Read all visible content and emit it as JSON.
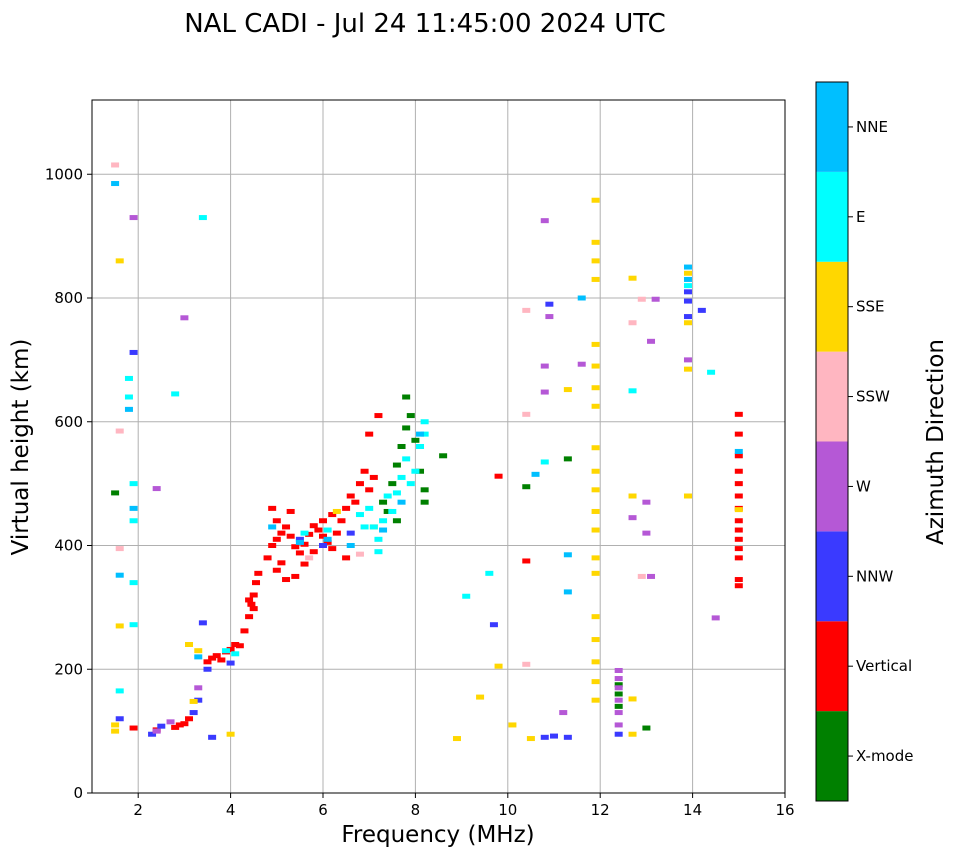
{
  "chart_data": {
    "type": "scatter",
    "title": "NAL CADI - Jul 24 11:45:00 2024 UTC",
    "xlabel": "Frequency (MHz)",
    "ylabel": "Virtual height (km)",
    "xlim": [
      1.0,
      16.0
    ],
    "ylim": [
      0,
      1120
    ],
    "xticks": [
      2,
      4,
      6,
      8,
      10,
      12,
      14,
      16
    ],
    "yticks": [
      0,
      200,
      400,
      600,
      800,
      1000
    ],
    "grid": true,
    "colorbar": {
      "label": "Azimuth Direction",
      "categories": [
        {
          "name": "X-mode",
          "color": "#008000"
        },
        {
          "name": "Vertical",
          "color": "#ff0000"
        },
        {
          "name": "NNW",
          "color": "#3a3aff"
        },
        {
          "name": "W",
          "color": "#b558d6"
        },
        {
          "name": "SSW",
          "color": "#ffb6c1"
        },
        {
          "name": "SSE",
          "color": "#ffd700"
        },
        {
          "name": "E",
          "color": "#00ffff"
        },
        {
          "name": "NNE",
          "color": "#00bfff"
        }
      ]
    },
    "series": [
      {
        "name": "Vertical",
        "color": "#ff0000",
        "points": [
          [
            1.9,
            105
          ],
          [
            2.4,
            102
          ],
          [
            2.8,
            106
          ],
          [
            2.9,
            110
          ],
          [
            3.0,
            112
          ],
          [
            3.1,
            120
          ],
          [
            3.5,
            212
          ],
          [
            3.6,
            218
          ],
          [
            3.7,
            222
          ],
          [
            3.8,
            215
          ],
          [
            3.9,
            228
          ],
          [
            4.0,
            232
          ],
          [
            4.1,
            240
          ],
          [
            4.2,
            238
          ],
          [
            4.3,
            262
          ],
          [
            4.4,
            285
          ],
          [
            4.45,
            305
          ],
          [
            4.5,
            320
          ],
          [
            4.55,
            340
          ],
          [
            4.6,
            355
          ],
          [
            4.5,
            298
          ],
          [
            4.4,
            312
          ],
          [
            4.8,
            380
          ],
          [
            4.9,
            400
          ],
          [
            5.0,
            410
          ],
          [
            5.1,
            420
          ],
          [
            5.2,
            430
          ],
          [
            5.3,
            415
          ],
          [
            5.4,
            398
          ],
          [
            5.5,
            388
          ],
          [
            5.6,
            402
          ],
          [
            5.7,
            418
          ],
          [
            5.8,
            432
          ],
          [
            5.9,
            425
          ],
          [
            6.0,
            415
          ],
          [
            6.1,
            405
          ],
          [
            6.2,
            395
          ],
          [
            6.3,
            420
          ],
          [
            6.4,
            440
          ],
          [
            6.5,
            460
          ],
          [
            6.6,
            480
          ],
          [
            6.7,
            470
          ],
          [
            6.8,
            500
          ],
          [
            6.9,
            520
          ],
          [
            7.0,
            490
          ],
          [
            7.1,
            510
          ],
          [
            5.0,
            360
          ],
          [
            5.2,
            345
          ],
          [
            5.4,
            350
          ],
          [
            5.0,
            440
          ],
          [
            5.3,
            455
          ],
          [
            4.9,
            460
          ],
          [
            6.2,
            450
          ],
          [
            6.0,
            440
          ],
          [
            7.0,
            580
          ],
          [
            7.2,
            610
          ],
          [
            6.5,
            380
          ],
          [
            5.8,
            390
          ],
          [
            5.6,
            370
          ],
          [
            5.1,
            372
          ],
          [
            15.0,
            335
          ],
          [
            15.0,
            345
          ],
          [
            15.0,
            380
          ],
          [
            15.0,
            395
          ],
          [
            15.0,
            410
          ],
          [
            15.0,
            425
          ],
          [
            15.0,
            440
          ],
          [
            15.0,
            460
          ],
          [
            15.0,
            480
          ],
          [
            15.0,
            500
          ],
          [
            15.0,
            520
          ],
          [
            15.0,
            545
          ],
          [
            15.0,
            580
          ],
          [
            15.0,
            612
          ],
          [
            10.4,
            375
          ],
          [
            9.8,
            512
          ]
        ]
      },
      {
        "name": "X-mode",
        "color": "#008000",
        "points": [
          [
            7.3,
            470
          ],
          [
            7.5,
            500
          ],
          [
            7.6,
            530
          ],
          [
            7.7,
            560
          ],
          [
            7.8,
            590
          ],
          [
            7.9,
            610
          ],
          [
            8.0,
            570
          ],
          [
            8.1,
            520
          ],
          [
            8.2,
            490
          ],
          [
            8.2,
            470
          ],
          [
            7.6,
            440
          ],
          [
            7.4,
            455
          ],
          [
            7.8,
            640
          ],
          [
            8.6,
            545
          ],
          [
            10.4,
            495
          ],
          [
            11.3,
            540
          ],
          [
            12.4,
            140
          ],
          [
            12.4,
            160
          ],
          [
            12.4,
            175
          ],
          [
            13.0,
            105
          ],
          [
            1.5,
            485
          ]
        ]
      },
      {
        "name": "NNW",
        "color": "#3a3aff",
        "points": [
          [
            2.3,
            95
          ],
          [
            2.5,
            108
          ],
          [
            3.2,
            130
          ],
          [
            3.3,
            150
          ],
          [
            3.4,
            275
          ],
          [
            3.6,
            90
          ],
          [
            3.5,
            200
          ],
          [
            4.0,
            210
          ],
          [
            5.5,
            410
          ],
          [
            6.0,
            400
          ],
          [
            6.6,
            420
          ],
          [
            9.7,
            272
          ],
          [
            10.8,
            90
          ],
          [
            11.0,
            92
          ],
          [
            11.3,
            90
          ],
          [
            10.9,
            790
          ],
          [
            12.4,
            95
          ],
          [
            13.9,
            770
          ],
          [
            13.9,
            795
          ],
          [
            13.9,
            810
          ],
          [
            1.6,
            120
          ],
          [
            1.9,
            712
          ],
          [
            14.2,
            780
          ]
        ]
      },
      {
        "name": "W",
        "color": "#b558d6",
        "points": [
          [
            2.4,
            100
          ],
          [
            2.7,
            115
          ],
          [
            3.3,
            170
          ],
          [
            12.4,
            110
          ],
          [
            12.4,
            130
          ],
          [
            12.4,
            150
          ],
          [
            12.4,
            170
          ],
          [
            12.4,
            185
          ],
          [
            12.4,
            198
          ],
          [
            10.9,
            770
          ],
          [
            10.8,
            925
          ],
          [
            10.8,
            690
          ],
          [
            10.8,
            648
          ],
          [
            12.7,
            445
          ],
          [
            13.0,
            420
          ],
          [
            13.0,
            470
          ],
          [
            13.1,
            350
          ],
          [
            13.1,
            730
          ],
          [
            13.2,
            798
          ],
          [
            14.5,
            283
          ],
          [
            11.2,
            130
          ],
          [
            11.6,
            693
          ],
          [
            13.9,
            700
          ],
          [
            2.4,
            492
          ],
          [
            1.9,
            930
          ],
          [
            3.0,
            768
          ]
        ]
      },
      {
        "name": "SSW",
        "color": "#ffb6c1",
        "points": [
          [
            1.5,
            1015
          ],
          [
            1.6,
            585
          ],
          [
            1.6,
            395
          ],
          [
            5.7,
            380
          ],
          [
            6.8,
            386
          ],
          [
            10.4,
            208
          ],
          [
            10.4,
            780
          ],
          [
            10.4,
            612
          ],
          [
            12.7,
            760
          ],
          [
            12.9,
            350
          ],
          [
            12.9,
            798
          ]
        ]
      },
      {
        "name": "SSE",
        "color": "#ffd700",
        "points": [
          [
            1.5,
            100
          ],
          [
            1.5,
            110
          ],
          [
            1.6,
            860
          ],
          [
            1.6,
            270
          ],
          [
            3.1,
            240
          ],
          [
            3.2,
            148
          ],
          [
            3.3,
            230
          ],
          [
            4.0,
            95
          ],
          [
            8.9,
            88
          ],
          [
            9.4,
            155
          ],
          [
            9.8,
            205
          ],
          [
            10.1,
            110
          ],
          [
            10.5,
            88
          ],
          [
            11.3,
            652
          ],
          [
            11.9,
            150
          ],
          [
            11.9,
            180
          ],
          [
            11.9,
            212
          ],
          [
            11.9,
            248
          ],
          [
            11.9,
            285
          ],
          [
            11.9,
            355
          ],
          [
            11.9,
            380
          ],
          [
            11.9,
            425
          ],
          [
            11.9,
            455
          ],
          [
            11.9,
            490
          ],
          [
            11.9,
            520
          ],
          [
            11.9,
            558
          ],
          [
            11.9,
            625
          ],
          [
            11.9,
            655
          ],
          [
            11.9,
            690
          ],
          [
            11.9,
            725
          ],
          [
            11.9,
            830
          ],
          [
            11.9,
            860
          ],
          [
            11.9,
            890
          ],
          [
            11.9,
            958
          ],
          [
            12.7,
            95
          ],
          [
            12.7,
            152
          ],
          [
            12.7,
            480
          ],
          [
            12.7,
            832
          ],
          [
            13.9,
            480
          ],
          [
            13.9,
            685
          ],
          [
            13.9,
            760
          ],
          [
            13.9,
            840
          ],
          [
            15.0,
            458
          ],
          [
            6.3,
            455
          ],
          [
            7.1,
            430
          ]
        ]
      },
      {
        "name": "E",
        "color": "#00ffff",
        "points": [
          [
            1.6,
            165
          ],
          [
            1.9,
            340
          ],
          [
            1.9,
            272
          ],
          [
            1.9,
            440
          ],
          [
            1.9,
            500
          ],
          [
            1.8,
            640
          ],
          [
            1.8,
            670
          ],
          [
            3.4,
            930
          ],
          [
            2.8,
            645
          ],
          [
            6.8,
            450
          ],
          [
            7.0,
            460
          ],
          [
            7.1,
            430
          ],
          [
            7.2,
            410
          ],
          [
            7.3,
            440
          ],
          [
            7.4,
            480
          ],
          [
            7.5,
            455
          ],
          [
            7.6,
            485
          ],
          [
            7.7,
            510
          ],
          [
            7.8,
            540
          ],
          [
            7.9,
            500
          ],
          [
            8.0,
            520
          ],
          [
            8.1,
            560
          ],
          [
            8.2,
            600
          ],
          [
            8.2,
            580
          ],
          [
            7.2,
            390
          ],
          [
            6.9,
            430
          ],
          [
            5.6,
            420
          ],
          [
            6.1,
            425
          ],
          [
            9.1,
            318
          ],
          [
            9.6,
            355
          ],
          [
            10.8,
            535
          ],
          [
            12.7,
            650
          ],
          [
            13.9,
            820
          ],
          [
            14.4,
            680
          ],
          [
            3.9,
            230
          ],
          [
            4.1,
            225
          ]
        ]
      },
      {
        "name": "NNE",
        "color": "#00bfff",
        "points": [
          [
            1.5,
            985
          ],
          [
            1.6,
            352
          ],
          [
            1.8,
            620
          ],
          [
            1.9,
            460
          ],
          [
            3.3,
            220
          ],
          [
            5.5,
            405
          ],
          [
            6.1,
            410
          ],
          [
            6.6,
            400
          ],
          [
            7.3,
            425
          ],
          [
            7.7,
            470
          ],
          [
            8.1,
            580
          ],
          [
            10.6,
            515
          ],
          [
            11.3,
            385
          ],
          [
            11.3,
            325
          ],
          [
            11.6,
            800
          ],
          [
            13.9,
            850
          ],
          [
            13.9,
            830
          ],
          [
            15.0,
            552
          ],
          [
            4.9,
            430
          ]
        ]
      }
    ]
  }
}
